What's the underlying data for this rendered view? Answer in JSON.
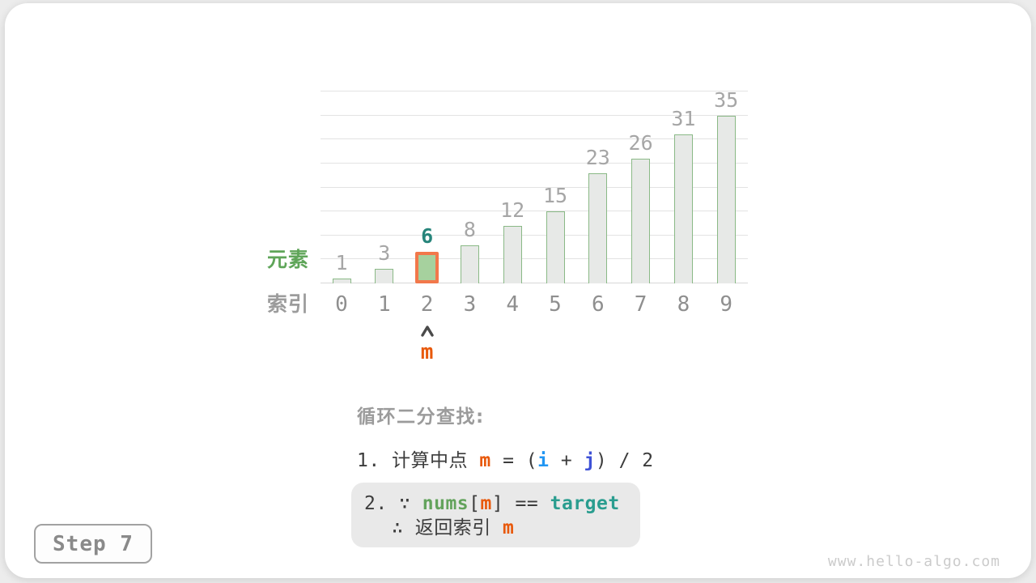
{
  "page": {
    "step_badge": "Step 7",
    "watermark": "www.hello-algo.com"
  },
  "palette": {
    "accent_orange": "#e8590c",
    "highlight_border": "#f2784b",
    "highlight_fill": "#a6d19e",
    "bar_fill": "#e7e9e7",
    "bar_border": "#8ab986",
    "teal_target": "#2a9d8f",
    "teal_dark": "#27857b",
    "green_axis_label": "#5fa559",
    "green_nums": "#63a35c",
    "blue_i": "#2196f3",
    "blue_j": "#3e51d6",
    "gray_heading": "#9b9b9b",
    "dark_text": "#3c3c3c",
    "axis_gray": "#8f8f8f",
    "value_gray": "#a6a6a6",
    "grid_gray": "#e3e3e3",
    "box_bg": "#e9e9e9"
  },
  "chart_data": {
    "type": "bar",
    "categories": [
      "0",
      "1",
      "2",
      "3",
      "4",
      "5",
      "6",
      "7",
      "8",
      "9"
    ],
    "values": [
      1,
      3,
      6,
      8,
      12,
      15,
      23,
      26,
      31,
      35
    ],
    "xlabel": "索引",
    "ylabel": "元素",
    "ylim": [
      0,
      40
    ],
    "grid_step": 5,
    "grid": true,
    "legend": "none",
    "highlight": {
      "index": 2,
      "value_label": "6",
      "marker_label": "m"
    }
  },
  "annotation": {
    "heading": "循环二分查找:",
    "step1": [
      {
        "t": "1. 计算中点 "
      },
      {
        "t": "m",
        "cls": "var-m"
      },
      {
        "t": " = ("
      },
      {
        "t": "i",
        "cls": "var-i"
      },
      {
        "t": " + "
      },
      {
        "t": "j",
        "cls": "var-j"
      },
      {
        "t": ") / 2"
      }
    ],
    "step2_line1": [
      {
        "t": "2. ∵ "
      },
      {
        "t": "nums",
        "cls": "kw-nums"
      },
      {
        "t": "["
      },
      {
        "t": "m",
        "cls": "var-m"
      },
      {
        "t": "] == "
      },
      {
        "t": "target",
        "cls": "kw-target"
      }
    ],
    "step2_line2": [
      {
        "t": "∴ 返回索引 "
      },
      {
        "t": "m",
        "cls": "var-m"
      }
    ]
  }
}
